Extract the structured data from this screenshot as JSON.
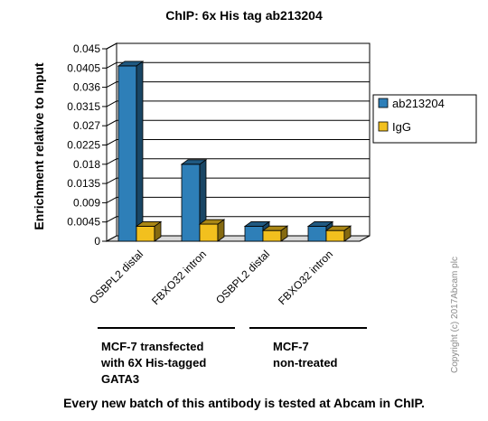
{
  "chart_data": {
    "type": "bar",
    "title": "ChIP: 6x His tag   ab213204",
    "ylabel": "Enrichment relative to Input",
    "xlabel": "",
    "ylim": [
      0,
      0.045
    ],
    "yticks": [
      "0",
      "0.0045",
      "0.009",
      "0.0135",
      "0.018",
      "0.0225",
      "0.027",
      "0.0315",
      "0.036",
      "0.0405",
      "0.045"
    ],
    "categories": [
      "OSBPL2 distal",
      "FBXO32 intron",
      "OSBPL2 distal",
      "FBXO32 intron"
    ],
    "series": [
      {
        "name": "ab213204",
        "color": "#2e7fb8",
        "values": [
          0.041,
          0.018,
          0.0035,
          0.0035
        ]
      },
      {
        "name": "IgG",
        "color": "#f2c01e",
        "values": [
          0.0035,
          0.004,
          0.0025,
          0.0025
        ]
      }
    ],
    "groups": [
      {
        "lines": [
          "MCF-7 transfected",
          "with 6X His-tagged",
          "GATA3"
        ]
      },
      {
        "lines": [
          "MCF-7",
          "non-treated"
        ]
      }
    ],
    "legend_position": "right",
    "grid": true
  },
  "footer": "Every new batch of this antibody is tested at Abcam in ChIP.",
  "copyright": "Copyright (c) 2017Abcam plc"
}
